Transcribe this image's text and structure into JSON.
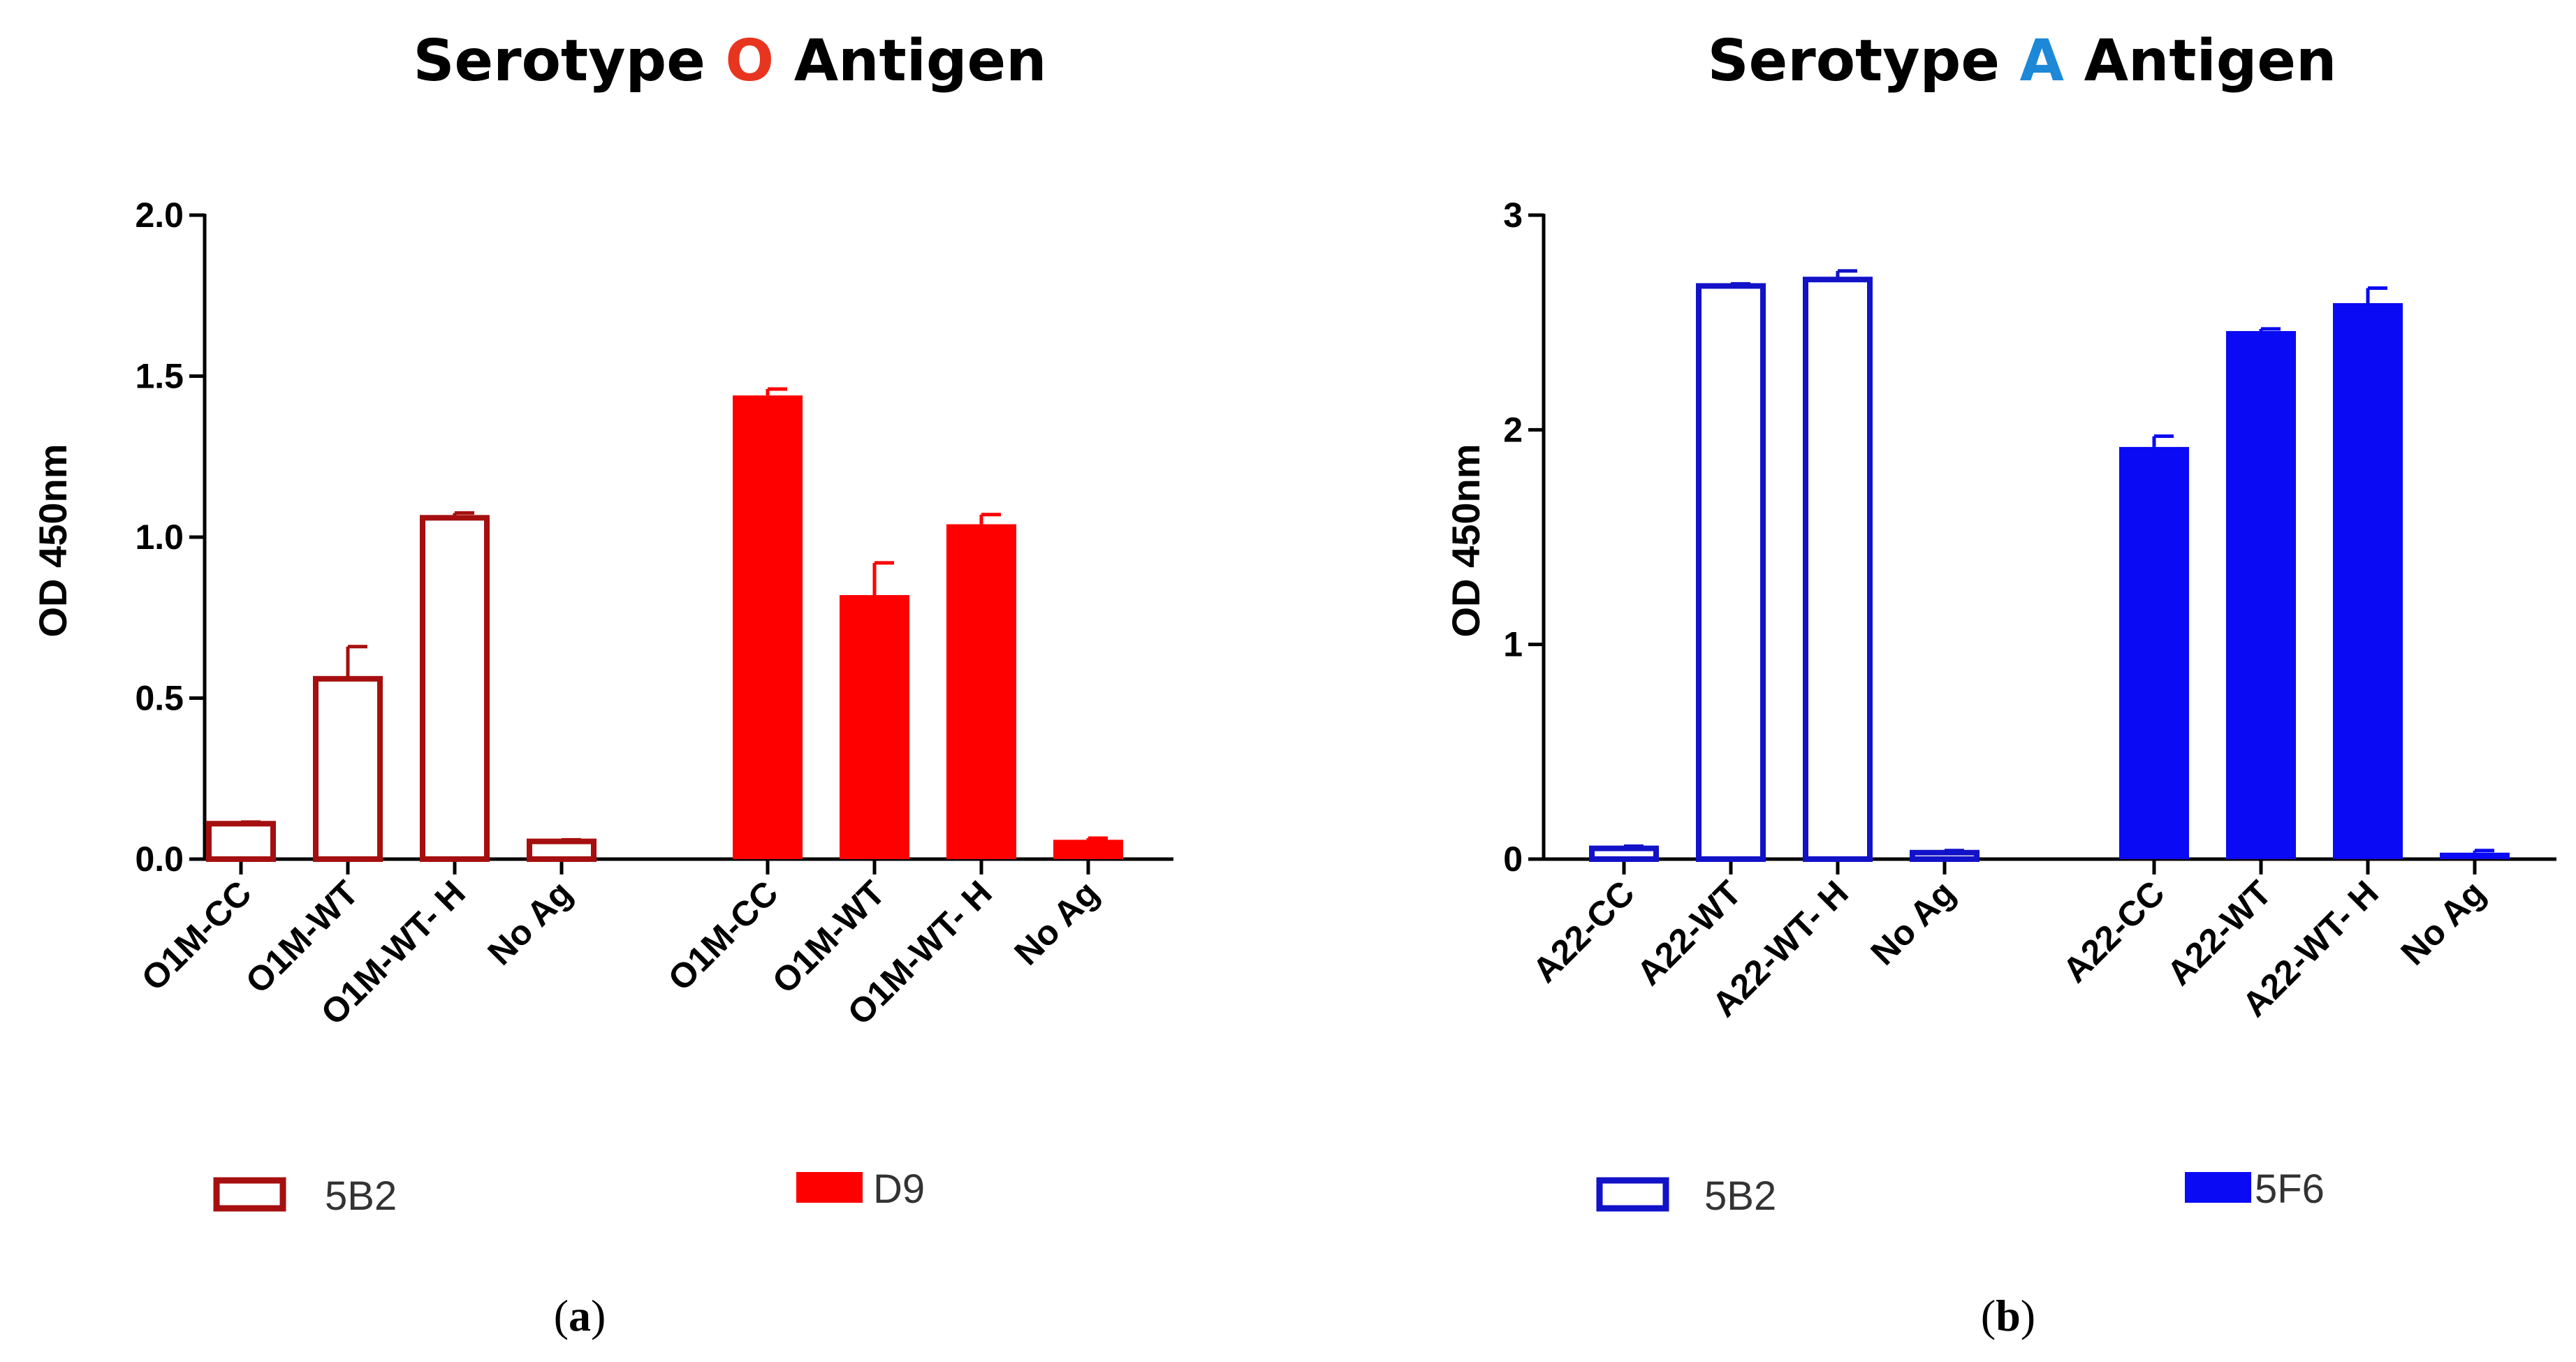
{
  "chart_data": [
    {
      "type": "bar",
      "title_parts": [
        {
          "text": "Serotype ",
          "color": "#000000"
        },
        {
          "text": "O",
          "color": "#e8351f"
        },
        {
          "text": " Antigen",
          "color": "#000000"
        }
      ],
      "xlabel": "",
      "ylabel": "OD 450nm",
      "ylim": [
        0,
        2.0
      ],
      "yticks": [
        "0.0",
        "0.5",
        "1.0",
        "1.5",
        "2.0"
      ],
      "ytick_values": [
        0,
        0.5,
        1.0,
        1.5,
        2.0
      ],
      "categories": [
        "O1M-CC",
        "O1M-WT",
        "O1M-WT- H",
        "No Ag"
      ],
      "series": [
        {
          "name": "5B2",
          "style": "open",
          "color": "#a50f0f",
          "values": [
            0.11,
            0.56,
            1.06,
            0.055
          ],
          "errors": [
            0.005,
            0.1,
            0.015,
            0.005
          ]
        },
        {
          "name": "D9",
          "style": "filled",
          "color": "#ff0000",
          "values": [
            1.44,
            0.82,
            1.04,
            0.06
          ],
          "errors": [
            0.02,
            0.1,
            0.03,
            0.005
          ]
        }
      ],
      "panel_label": "(a)"
    },
    {
      "type": "bar",
      "title_parts": [
        {
          "text": "Serotype ",
          "color": "#000000"
        },
        {
          "text": "A",
          "color": "#1e88d8"
        },
        {
          "text": " Antigen",
          "color": "#000000"
        }
      ],
      "xlabel": "",
      "ylabel": "OD 450nm",
      "ylim": [
        0,
        3
      ],
      "yticks": [
        "0",
        "1",
        "2",
        "3"
      ],
      "ytick_values": [
        0,
        1,
        2,
        3
      ],
      "categories": [
        "A22-CC",
        "A22-WT",
        "A22-WT- H",
        "No Ag"
      ],
      "series": [
        {
          "name": "5B2",
          "style": "open",
          "color": "#1212c8",
          "values": [
            0.05,
            2.67,
            2.7,
            0.03
          ],
          "errors": [
            0.01,
            0.01,
            0.04,
            0.01
          ]
        },
        {
          "name": "5F6",
          "style": "filled",
          "color": "#0a0af5",
          "values": [
            1.92,
            2.46,
            2.59,
            0.03
          ],
          "errors": [
            0.05,
            0.01,
            0.07,
            0.01
          ]
        }
      ],
      "panel_label": "(b)"
    }
  ]
}
